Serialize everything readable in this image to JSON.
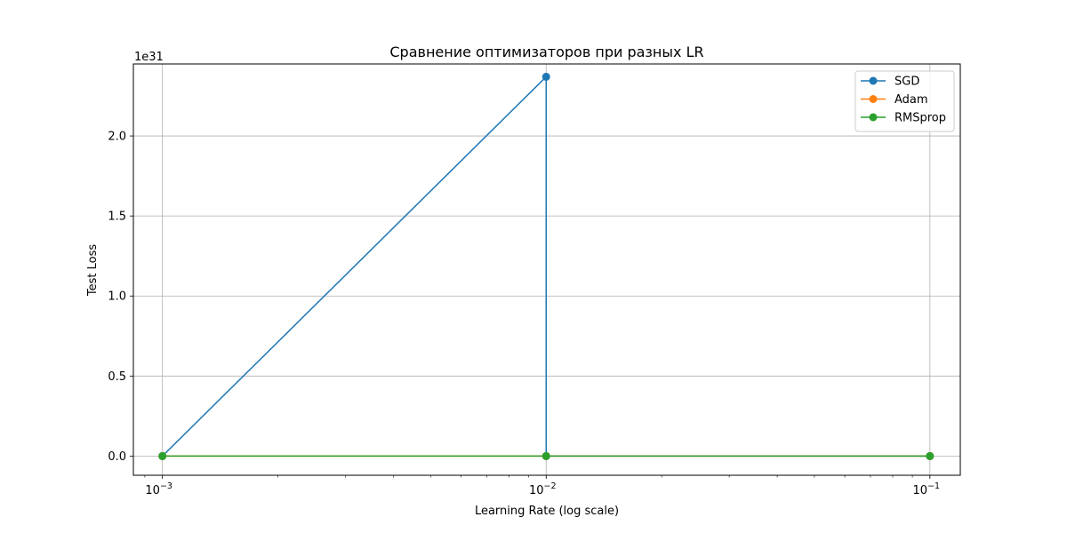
{
  "chart_data": {
    "type": "line",
    "title": "Сравнение оптимизаторов при разных LR",
    "xlabel": "Learning Rate (log scale)",
    "ylabel": "Test Loss",
    "xscale": "log",
    "xlim": [
      0.00084,
      0.12
    ],
    "ylim": [
      -0.12,
      2.45
    ],
    "y_offset_label": "1e31",
    "x_ticks": [
      {
        "value": 0.001,
        "base": "10",
        "exp": "−3"
      },
      {
        "value": 0.01,
        "base": "10",
        "exp": "−2"
      },
      {
        "value": 0.1,
        "base": "10",
        "exp": "−1"
      }
    ],
    "y_ticks": [
      {
        "value": 0.0,
        "label": "0.0"
      },
      {
        "value": 0.5,
        "label": "0.5"
      },
      {
        "value": 1.0,
        "label": "1.0"
      },
      {
        "value": 1.5,
        "label": "1.5"
      },
      {
        "value": 2.0,
        "label": "2.0"
      }
    ],
    "grid": true,
    "legend_position": "top-right",
    "series": [
      {
        "name": "SGD",
        "color": "#1f77b4",
        "x": [
          0.001,
          0.01,
          0.01,
          0.1
        ],
        "y": [
          0.0,
          2.37,
          0.0,
          0.0
        ]
      },
      {
        "name": "Adam",
        "color": "#ff7f0e",
        "x": [
          0.001,
          0.01,
          0.1
        ],
        "y": [
          0.0,
          0.0,
          0.0
        ]
      },
      {
        "name": "RMSprop",
        "color": "#2ca02c",
        "x": [
          0.001,
          0.01,
          0.1
        ],
        "y": [
          0.0,
          0.0,
          0.0
        ]
      }
    ]
  }
}
